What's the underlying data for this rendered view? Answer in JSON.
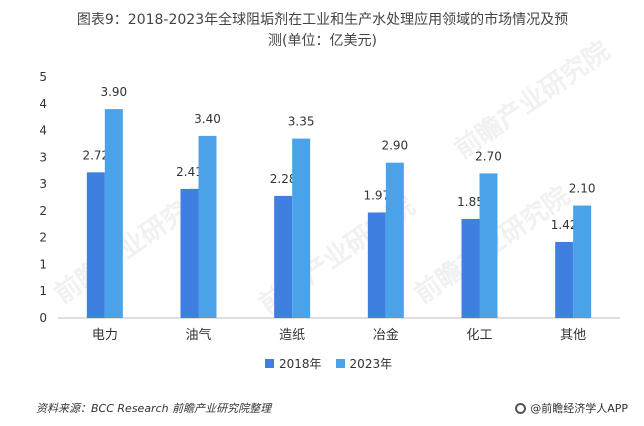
{
  "title_line1": "图表9：2018-2023年全球阻垢剂在工业和生产水处理应用领域的市场情况及预",
  "title_line2": "测(单位：亿美元)",
  "source": "资料来源：BCC Research 前瞻产业研究院整理",
  "brand": "@前瞻经济学人APP",
  "watermark": "前瞻产业研究院",
  "colors": {
    "s2018": "#3F7FE0",
    "s2023": "#4AA3E8",
    "axis": "#bfbfbf",
    "text": "#333333"
  },
  "chart_data": {
    "type": "bar",
    "categories": [
      "电力",
      "油气",
      "造纸",
      "冶金",
      "化工",
      "其他"
    ],
    "series": [
      {
        "name": "2018年",
        "values": [
          2.72,
          2.41,
          2.28,
          1.97,
          1.85,
          1.42
        ],
        "labels": [
          "2.72",
          "2.41",
          "2.28",
          "1.97",
          "1.85",
          "1.42"
        ]
      },
      {
        "name": "2023年",
        "values": [
          3.9,
          3.4,
          3.35,
          2.9,
          2.7,
          2.1
        ],
        "labels": [
          "3.90",
          "3.40",
          "3.35",
          "2.90",
          "2.70",
          "2.10"
        ]
      }
    ],
    "ylim": [
      0,
      4.5
    ],
    "yticks": [
      0,
      0.5,
      1,
      1.5,
      2,
      2.5,
      3,
      3.5,
      4,
      4.5
    ],
    "ytick_labels": [
      "0",
      "1",
      "1",
      "2",
      "2",
      "3",
      "3",
      "4",
      "4",
      "5"
    ],
    "legend_position": "bottom"
  }
}
